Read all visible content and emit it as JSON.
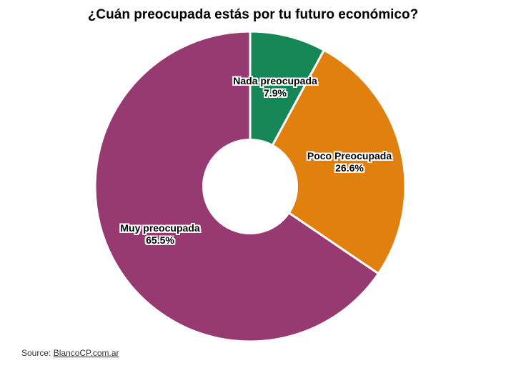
{
  "chart_data": {
    "type": "pie",
    "subtype": "donut",
    "title": "¿Cuán preocupada estás por tu futuro económico?",
    "categories": [
      "Nada preocupada",
      "Poco Preocupada",
      "Muy preocupada"
    ],
    "values": [
      7.9,
      26.6,
      65.5
    ],
    "slices": [
      {
        "label": "Nada preocupada",
        "value": 7.9,
        "pct_label": "7.9%",
        "color": "#158757"
      },
      {
        "label": "Poco Preocupada",
        "value": 26.6,
        "pct_label": "26.6%",
        "color": "#E0800E"
      },
      {
        "label": "Muy preocupada",
        "value": 65.5,
        "pct_label": "65.5%",
        "color": "#983A72"
      }
    ],
    "start_angle_deg": 0,
    "direction": "clockwise",
    "donut_hole_ratio": 0.31,
    "separator_color": "#FFFFFF",
    "legend_position": "none",
    "labels_inside": true
  },
  "source": {
    "prefix": "Source: ",
    "link_text": "BlancoCP.com.ar"
  },
  "colors": {
    "background": "#FFFFFF",
    "title_text": "#000000",
    "label_text": "#000000",
    "label_outline": "#FFFFFF",
    "source_text": "#333333"
  }
}
